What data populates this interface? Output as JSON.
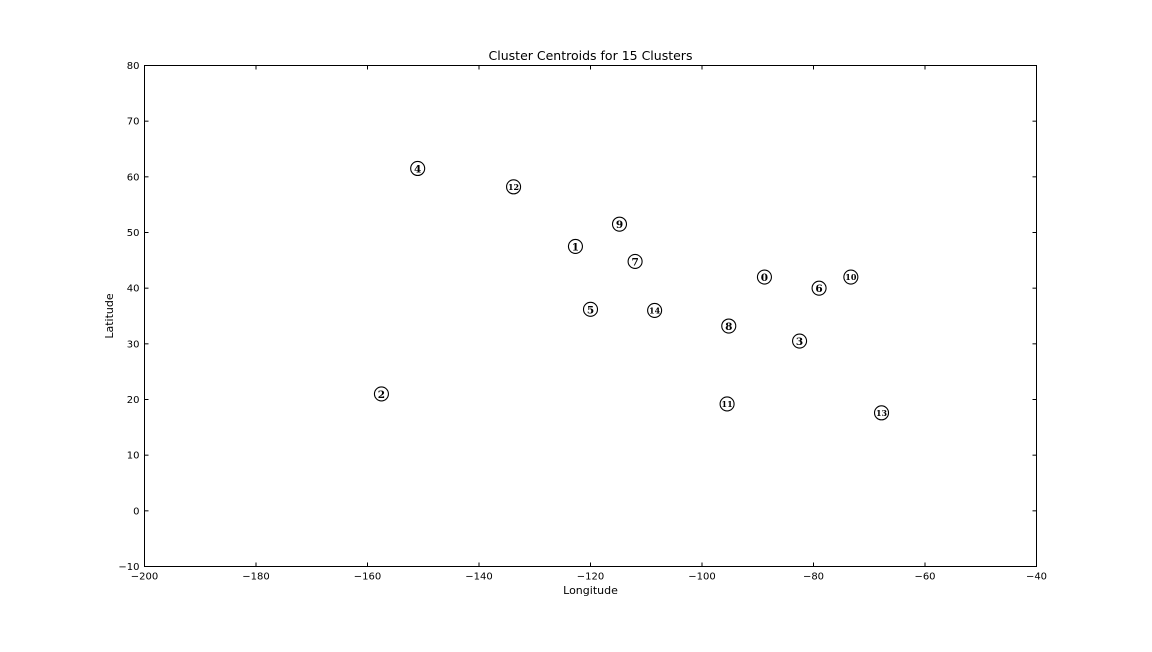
{
  "chart_data": {
    "type": "scatter",
    "title": "Cluster Centroids for 15 Clusters",
    "xlabel": "Longitude",
    "ylabel": "Latitude",
    "xlim": [
      -200,
      -40
    ],
    "ylim": [
      -10,
      80
    ],
    "xticks": [
      -200,
      -180,
      -160,
      -140,
      -120,
      -100,
      -80,
      -60,
      -40
    ],
    "yticks": [
      -10,
      0,
      10,
      20,
      30,
      40,
      50,
      60,
      70,
      80
    ],
    "grid": false,
    "legend": "none",
    "marker_style": "circled-number",
    "points": [
      {
        "label": "0",
        "x": -88.8,
        "y": 42.0
      },
      {
        "label": "1",
        "x": -122.7,
        "y": 47.5
      },
      {
        "label": "2",
        "x": -157.5,
        "y": 21.0
      },
      {
        "label": "3",
        "x": -82.5,
        "y": 30.5
      },
      {
        "label": "4",
        "x": -151.0,
        "y": 61.5
      },
      {
        "label": "5",
        "x": -120.0,
        "y": 36.2
      },
      {
        "label": "6",
        "x": -79.0,
        "y": 40.0
      },
      {
        "label": "7",
        "x": -112.0,
        "y": 44.8
      },
      {
        "label": "8",
        "x": -95.2,
        "y": 33.2
      },
      {
        "label": "9",
        "x": -114.8,
        "y": 51.5
      },
      {
        "label": "10",
        "x": -73.3,
        "y": 42.0
      },
      {
        "label": "11",
        "x": -95.5,
        "y": 19.2
      },
      {
        "label": "12",
        "x": -133.8,
        "y": 58.2
      },
      {
        "label": "13",
        "x": -67.8,
        "y": 17.6
      },
      {
        "label": "14",
        "x": -108.5,
        "y": 36.0
      }
    ]
  }
}
